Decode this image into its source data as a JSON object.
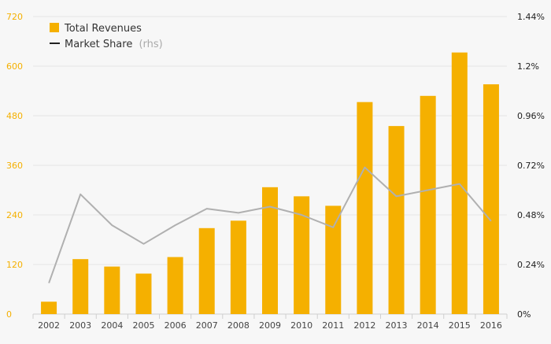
{
  "chart_data": {
    "type": "bar",
    "title": "",
    "categories": [
      "2002",
      "2003",
      "2004",
      "2005",
      "2006",
      "2007",
      "2008",
      "2009",
      "2010",
      "2011",
      "2012",
      "2013",
      "2014",
      "2015",
      "2016"
    ],
    "series": [
      {
        "name": "Total Revenues",
        "kind": "bar",
        "axis": "left",
        "color": "#f5b000",
        "values": [
          30,
          133,
          115,
          98,
          138,
          208,
          226,
          307,
          285,
          262,
          513,
          455,
          528,
          633,
          556
        ]
      },
      {
        "name": "Market Share",
        "name_suffix": "(rhs)",
        "kind": "line",
        "axis": "right",
        "color": "#b0b0b0",
        "values": [
          0.0015,
          0.0058,
          0.0043,
          0.0034,
          0.0043,
          0.0051,
          0.0049,
          0.0052,
          0.0048,
          0.0042,
          0.0071,
          0.0057,
          0.006,
          0.0063,
          0.0045
        ]
      }
    ],
    "left_axis": {
      "ylim": [
        0,
        720
      ],
      "ticks": [
        0,
        120,
        240,
        360,
        480,
        600,
        720
      ],
      "tick_labels": [
        "0",
        "120",
        "240",
        "360",
        "480",
        "600",
        "720"
      ],
      "tick_color": "#f5b000"
    },
    "right_axis": {
      "ylim": [
        0,
        0.0144
      ],
      "ticks": [
        0,
        0.0024,
        0.0048,
        0.0072,
        0.0096,
        0.012,
        0.0144
      ],
      "tick_labels": [
        "0%",
        "0.24%",
        "0.48%",
        "0.72%",
        "0.96%",
        "1.2%",
        "1.44%"
      ],
      "tick_color": "#222222"
    },
    "grid": true,
    "legend_position": "top-left"
  }
}
